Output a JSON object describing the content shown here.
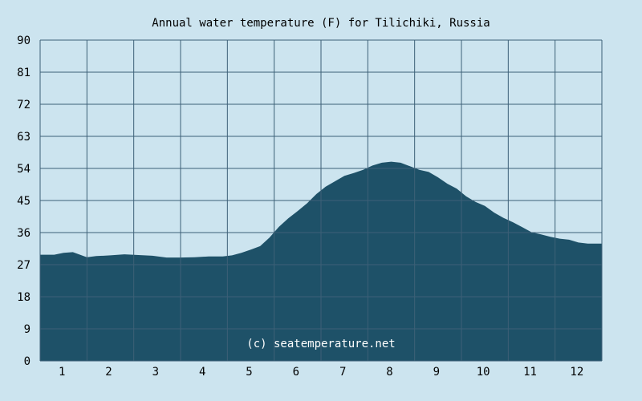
{
  "chart_data": {
    "type": "area",
    "title": "Annual water temperature (F) for Tilichiki, Russia",
    "xlabel": "",
    "ylabel": "",
    "x_categories": [
      "1",
      "2",
      "3",
      "4",
      "5",
      "6",
      "7",
      "8",
      "9",
      "10",
      "11",
      "12"
    ],
    "y_ticks": [
      0,
      9,
      18,
      27,
      36,
      45,
      54,
      63,
      72,
      81,
      90
    ],
    "ylim": [
      0,
      90
    ],
    "xlim": [
      0.5,
      12.5
    ],
    "grid": true,
    "watermark": "(c) seatemperature.net",
    "series": [
      {
        "x": [
          0.5,
          0.8,
          1.0,
          1.2,
          1.5,
          1.7,
          2.0,
          2.3,
          2.6,
          2.9,
          3.2,
          3.5,
          3.8,
          4.1,
          4.4,
          4.6,
          4.8,
          5.0,
          5.2,
          5.4,
          5.6,
          5.8,
          6.0,
          6.2,
          6.4,
          6.6,
          6.8,
          7.0,
          7.2,
          7.4,
          7.6,
          7.8,
          8.0,
          8.2,
          8.4,
          8.6,
          8.8,
          9.0,
          9.2,
          9.4,
          9.6,
          9.8,
          10.0,
          10.2,
          10.4,
          10.6,
          10.8,
          11.0,
          11.2,
          11.4,
          11.6,
          11.8,
          12.0,
          12.2,
          12.5
        ],
        "y": [
          29.8,
          29.8,
          30.3,
          30.5,
          29.1,
          29.4,
          29.6,
          29.9,
          29.7,
          29.5,
          29.0,
          29.0,
          29.1,
          29.3,
          29.3,
          29.6,
          30.3,
          31.2,
          32.2,
          34.6,
          37.6,
          40.0,
          42.0,
          44.2,
          46.8,
          48.9,
          50.4,
          51.9,
          52.7,
          53.6,
          54.8,
          55.6,
          55.9,
          55.6,
          54.6,
          53.6,
          53.0,
          51.5,
          49.7,
          48.3,
          46.2,
          44.6,
          43.5,
          41.6,
          40.1,
          38.9,
          37.5,
          36.1,
          35.5,
          34.8,
          34.3,
          34.0,
          33.2,
          32.9,
          32.9
        ],
        "color": "#1e5168"
      }
    ],
    "colors": {
      "background": "#cce4ef",
      "area_fill": "#1e5168",
      "grid": "#3d6077",
      "frame": "#3d6077",
      "text": "#000000",
      "watermark": "#ffffff"
    }
  }
}
